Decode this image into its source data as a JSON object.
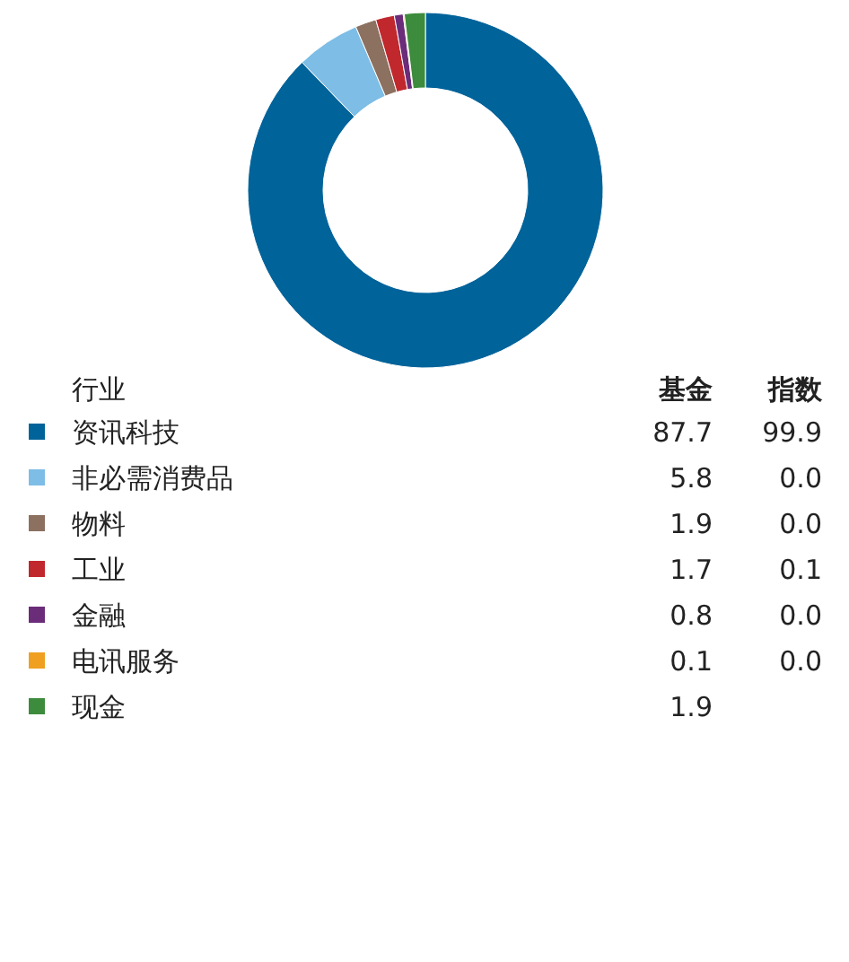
{
  "chart_data": [
    {
      "type": "donut",
      "legend_title": "行业",
      "legend": "bottom",
      "data_labels": true,
      "categories": [
        "资讯科技",
        "非必需消费品",
        "物料",
        "工业",
        "金融",
        "电讯服务",
        "现金"
      ],
      "colors": [
        "#00639a",
        "#7dbde6",
        "#8c7060",
        "#c0282d",
        "#6b2c7a",
        "#f0a020",
        "#3d8b3d"
      ],
      "series": [
        {
          "name": "基金",
          "values": [
            87.7,
            5.8,
            1.9,
            1.7,
            0.8,
            0.1,
            1.9
          ],
          "value_labels": [
            "87.7",
            "5.8",
            "1.9",
            "1.7",
            "0.8",
            "0.1",
            "1.9"
          ]
        }
      ]
    },
    {
      "type": "other",
      "title": "指数",
      "value_labels": [
        "99.9",
        "0.0",
        "0.0",
        "0.1",
        "0.0",
        "0.0",
        null
      ]
    }
  ]
}
